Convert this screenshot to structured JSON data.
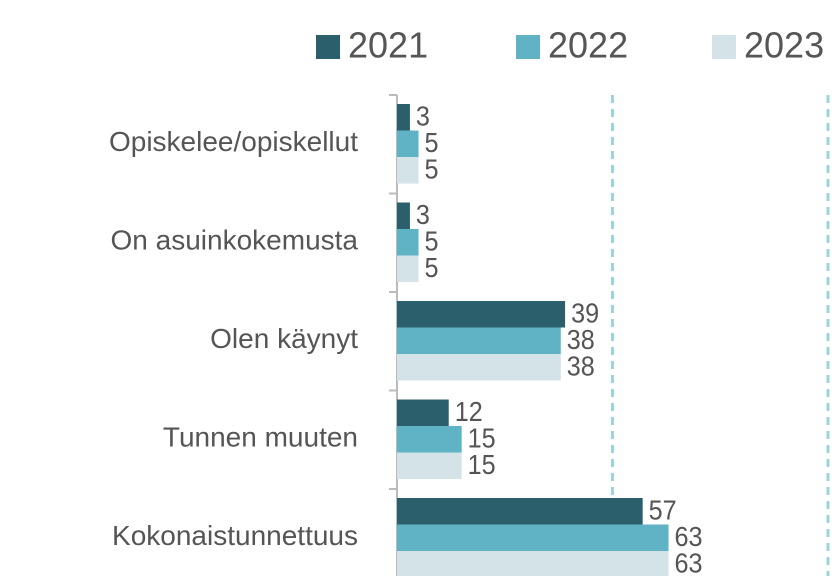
{
  "chart_data": {
    "type": "bar",
    "orientation": "horizontal",
    "categories": [
      "Opiskelee/opiskellut",
      "On asuinkokemusta",
      "Olen käynyt",
      "Tunnen muuten",
      "Kokonaistunnettuus"
    ],
    "series": [
      {
        "name": "2021",
        "color": "#2a5f6b",
        "values": [
          3,
          3,
          39,
          12,
          57
        ]
      },
      {
        "name": "2022",
        "color": "#5fb3c4",
        "values": [
          5,
          5,
          38,
          15,
          63
        ]
      },
      {
        "name": "2023",
        "color": "#d3e3e8",
        "values": [
          5,
          5,
          38,
          15,
          63
        ]
      }
    ],
    "xlim": [
      0,
      100
    ],
    "xticks": [
      50,
      100
    ],
    "grid": true,
    "legend": "top"
  }
}
